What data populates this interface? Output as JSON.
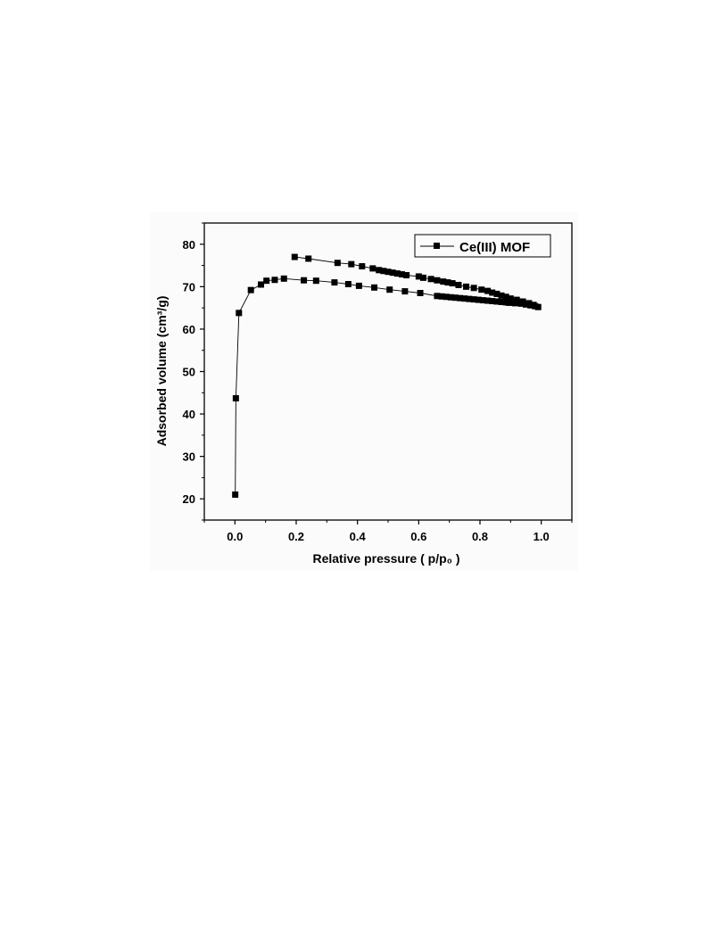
{
  "chart_data": {
    "type": "line",
    "xlabel": "Relative pressure ( p/p₀ )",
    "ylabel": "Adsorbed volume (cm³/g)",
    "xlim": [
      -0.1,
      1.1
    ],
    "ylim": [
      15,
      85
    ],
    "x_ticks": [
      0.0,
      0.2,
      0.4,
      0.6,
      0.8,
      1.0
    ],
    "x_tick_labels": [
      "0.0",
      "0.2",
      "0.4",
      "0.6",
      "0.8",
      "1.0"
    ],
    "y_ticks": [
      20,
      30,
      40,
      50,
      60,
      70,
      80
    ],
    "y_tick_labels": [
      "20",
      "30",
      "40",
      "50",
      "60",
      "70",
      "80"
    ],
    "grid": false,
    "legend_position": "top-right",
    "series": [
      {
        "name": "Ce(III) MOF",
        "marker": "square",
        "color": "#000000",
        "x": [
          0.001,
          0.003,
          0.013,
          0.052,
          0.085,
          0.103,
          0.13,
          0.16,
          0.225,
          0.265,
          0.325,
          0.37,
          0.405,
          0.455,
          0.505,
          0.555,
          0.605,
          0.66,
          0.675,
          0.69,
          0.705,
          0.72,
          0.735,
          0.75,
          0.765,
          0.78,
          0.795,
          0.81,
          0.825,
          0.84,
          0.855,
          0.87,
          0.885,
          0.895,
          0.915,
          0.935,
          0.95,
          0.965,
          0.98,
          0.99,
          0.975,
          0.96,
          0.94,
          0.92,
          0.9,
          0.885,
          0.87,
          0.855,
          0.84,
          0.825,
          0.805,
          0.78,
          0.755,
          0.73,
          0.71,
          0.695,
          0.68,
          0.66,
          0.64,
          0.615,
          0.6,
          0.56,
          0.545,
          0.53,
          0.515,
          0.5,
          0.485,
          0.47,
          0.45,
          0.415,
          0.38,
          0.335,
          0.24,
          0.195
        ],
        "y": [
          21.0,
          43.7,
          63.8,
          69.2,
          70.5,
          71.4,
          71.6,
          71.9,
          71.5,
          71.4,
          71.0,
          70.6,
          70.2,
          69.8,
          69.3,
          68.9,
          68.5,
          67.8,
          67.7,
          67.6,
          67.5,
          67.4,
          67.3,
          67.2,
          67.1,
          67.0,
          66.9,
          66.8,
          66.7,
          66.6,
          66.5,
          66.4,
          66.3,
          66.2,
          66.1,
          66.0,
          65.8,
          65.6,
          65.4,
          65.2,
          65.7,
          66.1,
          66.5,
          66.9,
          67.2,
          67.6,
          67.9,
          68.3,
          68.6,
          69.0,
          69.3,
          69.7,
          70.0,
          70.4,
          70.8,
          71.0,
          71.2,
          71.5,
          71.8,
          72.1,
          72.4,
          72.7,
          72.9,
          73.1,
          73.3,
          73.5,
          73.7,
          73.9,
          74.3,
          74.8,
          75.3,
          75.6,
          76.6,
          77.0
        ]
      }
    ]
  }
}
